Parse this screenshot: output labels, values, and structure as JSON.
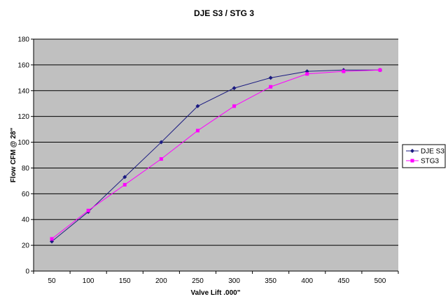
{
  "chart_data": {
    "type": "line",
    "title": "DJE S3 / STG 3",
    "xlabel": "Valve Lift .000\"",
    "ylabel": "Flow CFM @ 28\"",
    "categories": [
      "50",
      "100",
      "150",
      "200",
      "250",
      "300",
      "350",
      "400",
      "450",
      "500"
    ],
    "ylim": [
      0,
      180
    ],
    "yticks": [
      "0",
      "20",
      "40",
      "60",
      "80",
      "100",
      "120",
      "140",
      "160",
      "180"
    ],
    "grid": "horizontal",
    "legend_position": "right",
    "series": [
      {
        "name": "DJE S3",
        "color": "#1a1a80",
        "marker": "diamond",
        "values": [
          23,
          46,
          73,
          100,
          128,
          142,
          150,
          155,
          156,
          156
        ]
      },
      {
        "name": "STG3",
        "color": "#ff00ff",
        "marker": "square",
        "values": [
          25,
          47,
          67,
          87,
          109,
          128,
          143,
          153,
          155,
          156
        ]
      }
    ]
  },
  "colors": {
    "plot_background": "#c0c0c0",
    "gridline": "#000000"
  }
}
